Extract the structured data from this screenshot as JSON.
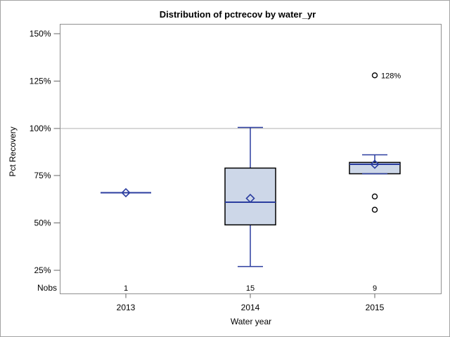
{
  "chart_data": {
    "type": "boxplot",
    "title": "Distribution of pctrecov by water_yr",
    "xlabel": "Water year",
    "ylabel": "Pct Recovery",
    "nobs_row_label": "Nobs",
    "y_ticks": [
      {
        "value": 150,
        "label": "150%"
      },
      {
        "value": 125,
        "label": "125%"
      },
      {
        "value": 100,
        "label": "100%"
      },
      {
        "value": 75,
        "label": "75%"
      },
      {
        "value": 50,
        "label": "50%"
      },
      {
        "value": 25,
        "label": "25%"
      }
    ],
    "y_axis_range_pct": [
      13,
      155
    ],
    "reference_line_pct": 100,
    "grid": "none-except-reference-line",
    "legend": "none",
    "groups": [
      {
        "category": "2013",
        "nobs": "1",
        "min": 66,
        "q1": 66,
        "median": 66,
        "q3": 66,
        "max": 66,
        "mean": 66,
        "outliers": []
      },
      {
        "category": "2014",
        "nobs": "15",
        "min": 27,
        "q1": 49,
        "median": 61,
        "q3": 79,
        "max": 100.5,
        "mean": 63,
        "outliers": []
      },
      {
        "category": "2015",
        "nobs": "9",
        "min": 76,
        "q1": 76,
        "median": 81,
        "q3": 82,
        "max": 86,
        "mean": 81,
        "outliers": [
          {
            "value": 64,
            "label": ""
          },
          {
            "value": 57,
            "label": ""
          },
          {
            "value": 128,
            "label": "128%"
          }
        ]
      }
    ],
    "colors": {
      "box_fill": "#cdd7e8",
      "box_border": "#000000",
      "line_blue": "#2b3d9f",
      "outlier_stroke": "#000000",
      "reference_line": "#b0b0b0",
      "plot_border": "#8f8f8f",
      "tick": "#666666",
      "figure_border": "#a3a3a3",
      "text": "#000000"
    }
  }
}
